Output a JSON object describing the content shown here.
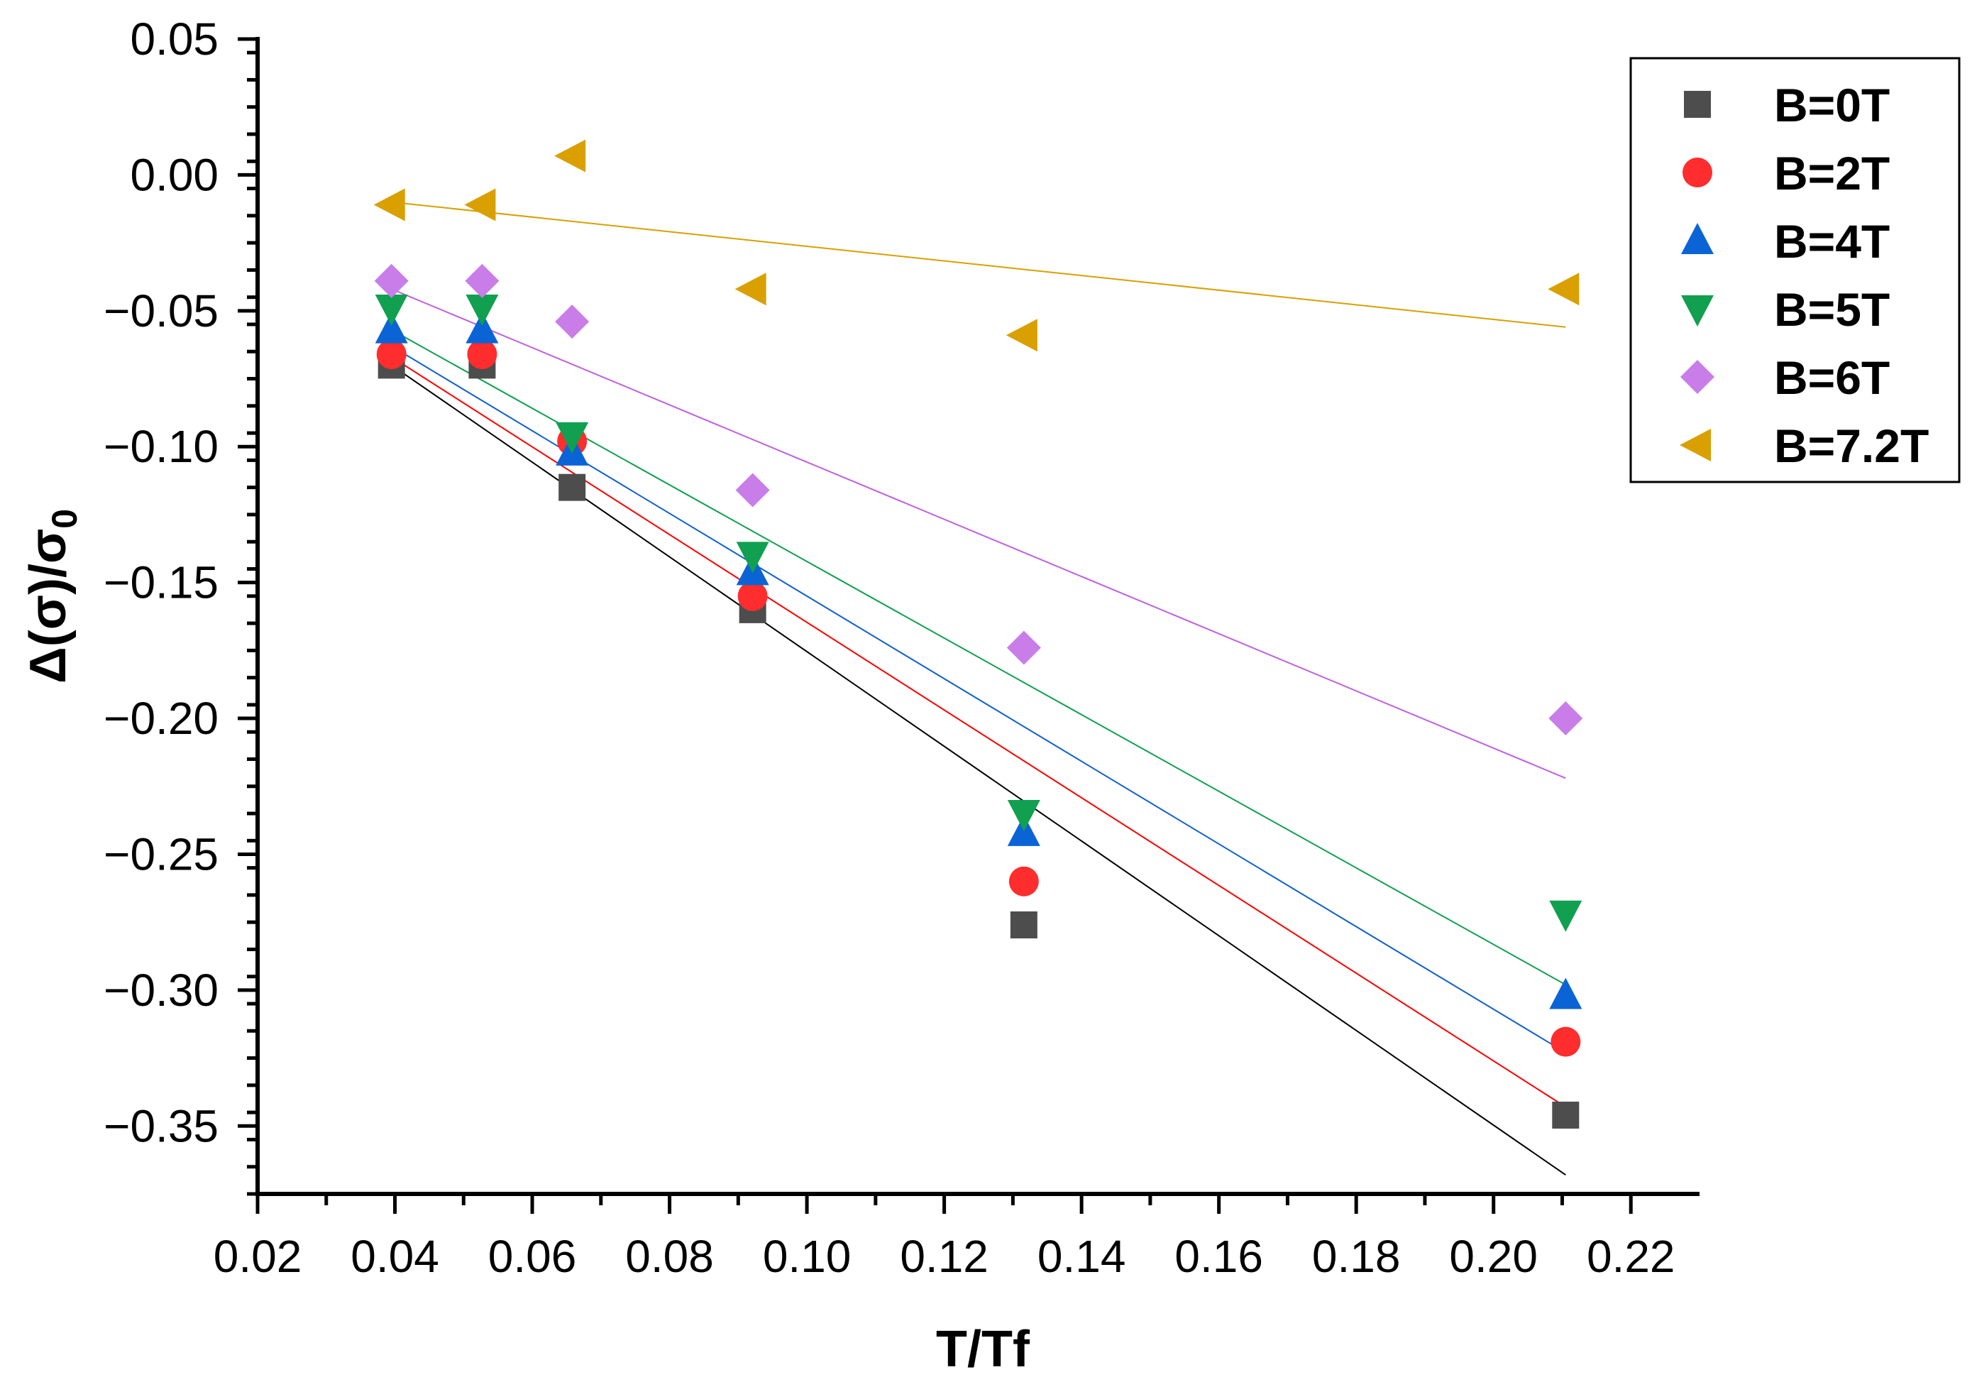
{
  "chart_data": {
    "type": "scatter",
    "title": "",
    "xlabel": "T/Tf",
    "ylabel": {
      "main": "Δ(σ)/σ",
      "subscript": "0"
    },
    "xlim": [
      0.02,
      0.23
    ],
    "ylim": [
      -0.375,
      0.05
    ],
    "xticks": [
      0.02,
      0.04,
      0.06,
      0.08,
      0.1,
      0.12,
      0.14,
      0.16,
      0.18,
      0.2,
      0.22
    ],
    "xtick_labels": [
      "0.02",
      "0.04",
      "0.06",
      "0.08",
      "0.10",
      "0.12",
      "0.14",
      "0.16",
      "0.18",
      "0.20",
      "0.22"
    ],
    "yticks": [
      0.05,
      0.0,
      -0.05,
      -0.1,
      -0.15,
      -0.2,
      -0.25,
      -0.3,
      -0.35
    ],
    "ytick_labels": [
      "0.05",
      "0.00",
      "−0.05",
      "−0.10",
      "−0.15",
      "−0.20",
      "−0.25",
      "−0.30",
      "−0.35"
    ],
    "grid": false,
    "legend_position": "top-right",
    "x": [
      0.0395,
      0.0527,
      0.0658,
      0.0921,
      0.1316,
      0.2105
    ],
    "series": [
      {
        "name": "B=0T",
        "marker": "square",
        "color": "#4d4d4d",
        "line_color": "#000000",
        "values": [
          -0.07,
          -0.07,
          -0.115,
          -0.16,
          -0.276,
          -0.346
        ],
        "fit": [
          -0.07,
          -0.368
        ]
      },
      {
        "name": "B=2T",
        "marker": "circle",
        "color": "#ff2d2d",
        "line_color": "#ff0000",
        "values": [
          -0.066,
          -0.066,
          -0.098,
          -0.155,
          -0.26,
          -0.319
        ],
        "fit": [
          -0.067,
          -0.343
        ]
      },
      {
        "name": "B=4T",
        "marker": "triangle-up",
        "color": "#0a64d6",
        "line_color": "#1060d0",
        "values": [
          -0.057,
          -0.057,
          -0.102,
          -0.146,
          -0.242,
          -0.302
        ],
        "fit": [
          -0.063,
          -0.323
        ]
      },
      {
        "name": "B=5T",
        "marker": "triangle-down",
        "color": "#10a050",
        "line_color": "#10a050",
        "values": [
          -0.049,
          -0.049,
          -0.096,
          -0.14,
          -0.235,
          -0.272
        ],
        "fit": [
          -0.057,
          -0.298
        ]
      },
      {
        "name": "B=6T",
        "marker": "diamond",
        "color": "#c97de8",
        "line_color": "#c060e0",
        "values": [
          -0.039,
          -0.039,
          -0.054,
          -0.116,
          -0.174,
          -0.2
        ],
        "fit": [
          -0.042,
          -0.222
        ]
      },
      {
        "name": "B=7.2T",
        "marker": "triangle-left",
        "color": "#d9a000",
        "line_color": "#d9a000",
        "values": [
          -0.011,
          -0.011,
          0.007,
          -0.042,
          -0.059,
          -0.042
        ],
        "fit": [
          -0.01,
          -0.056
        ]
      }
    ]
  }
}
